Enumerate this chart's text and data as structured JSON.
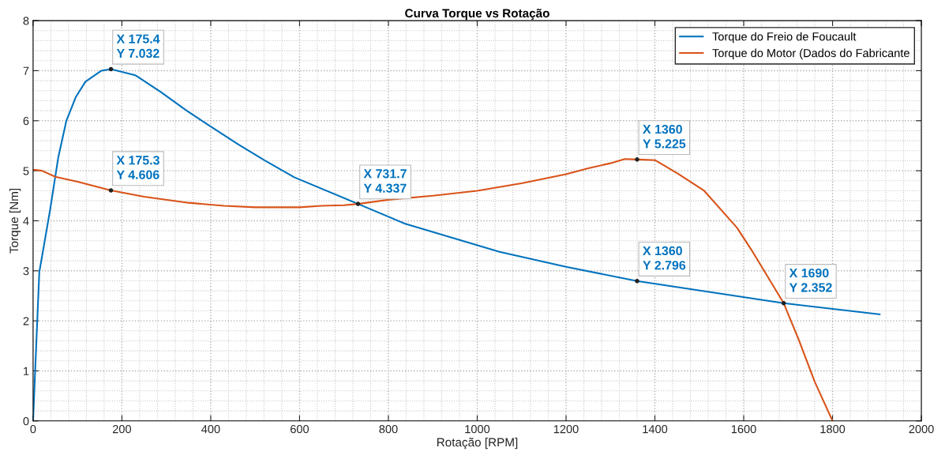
{
  "chart_data": {
    "type": "line",
    "title": "Curva Torque vs Rotação",
    "xlabel": "Rotação [RPM]",
    "ylabel": "Torque [Nm]",
    "xlim": [
      0,
      2000
    ],
    "ylim": [
      0,
      8
    ],
    "xticks": [
      0,
      200,
      400,
      600,
      800,
      1000,
      1200,
      1400,
      1600,
      1800,
      2000
    ],
    "yticks": [
      0,
      1,
      2,
      3,
      4,
      5,
      6,
      7,
      8
    ],
    "grid": true,
    "legend": "top right",
    "marker": "none",
    "line_style": "solid",
    "series": [
      {
        "name": "Torque do Freio de Foucault",
        "color": "#0072bd",
        "x": [
          0,
          14,
          38,
          57,
          75,
          96,
          118,
          154,
          175.4,
          230,
          288,
          346,
          404,
          463,
          521,
          588,
          731.7,
          838,
          1050,
          1200,
          1360,
          1690,
          1906
        ],
        "values": [
          0,
          2.97,
          4.2,
          5.28,
          6.0,
          6.47,
          6.78,
          7.0,
          7.032,
          6.91,
          6.57,
          6.2,
          5.86,
          5.52,
          5.21,
          4.87,
          4.337,
          3.94,
          3.38,
          3.08,
          2.796,
          2.352,
          2.13
        ]
      },
      {
        "name": "Torque do Motor (Dados do Fabricante",
        "color": "#d95319",
        "x": [
          0,
          20,
          50,
          100,
          175.3,
          250,
          350,
          430,
          500,
          600,
          650,
          700,
          731.7,
          800,
          900,
          1000,
          1100,
          1150,
          1200,
          1250,
          1300,
          1332,
          1360,
          1401,
          1452,
          1511,
          1585,
          1618,
          1690,
          1724,
          1760,
          1800
        ],
        "values": [
          5.02,
          5.0,
          4.88,
          4.78,
          4.606,
          4.48,
          4.36,
          4.3,
          4.27,
          4.27,
          4.3,
          4.31,
          4.337,
          4.42,
          4.5,
          4.6,
          4.75,
          4.84,
          4.93,
          5.05,
          5.15,
          5.235,
          5.225,
          5.21,
          4.94,
          4.6,
          3.86,
          3.41,
          2.352,
          1.62,
          0.78,
          0
        ]
      }
    ],
    "annotations": [
      {
        "text": "X 175.4\nY 7.032",
        "x": 175.4,
        "y": 7.032
      },
      {
        "text": "X 175.3\nY 4.606",
        "x": 175.3,
        "y": 4.606
      },
      {
        "text": "X 731.7\nY 4.337",
        "x": 731.7,
        "y": 4.337
      },
      {
        "text": "X 1360\nY 5.225",
        "x": 1360,
        "y": 5.225
      },
      {
        "text": "X 1360\nY 2.796",
        "x": 1360,
        "y": 2.796
      },
      {
        "text": "X 1690\nY 2.352",
        "x": 1690,
        "y": 2.352
      }
    ]
  }
}
